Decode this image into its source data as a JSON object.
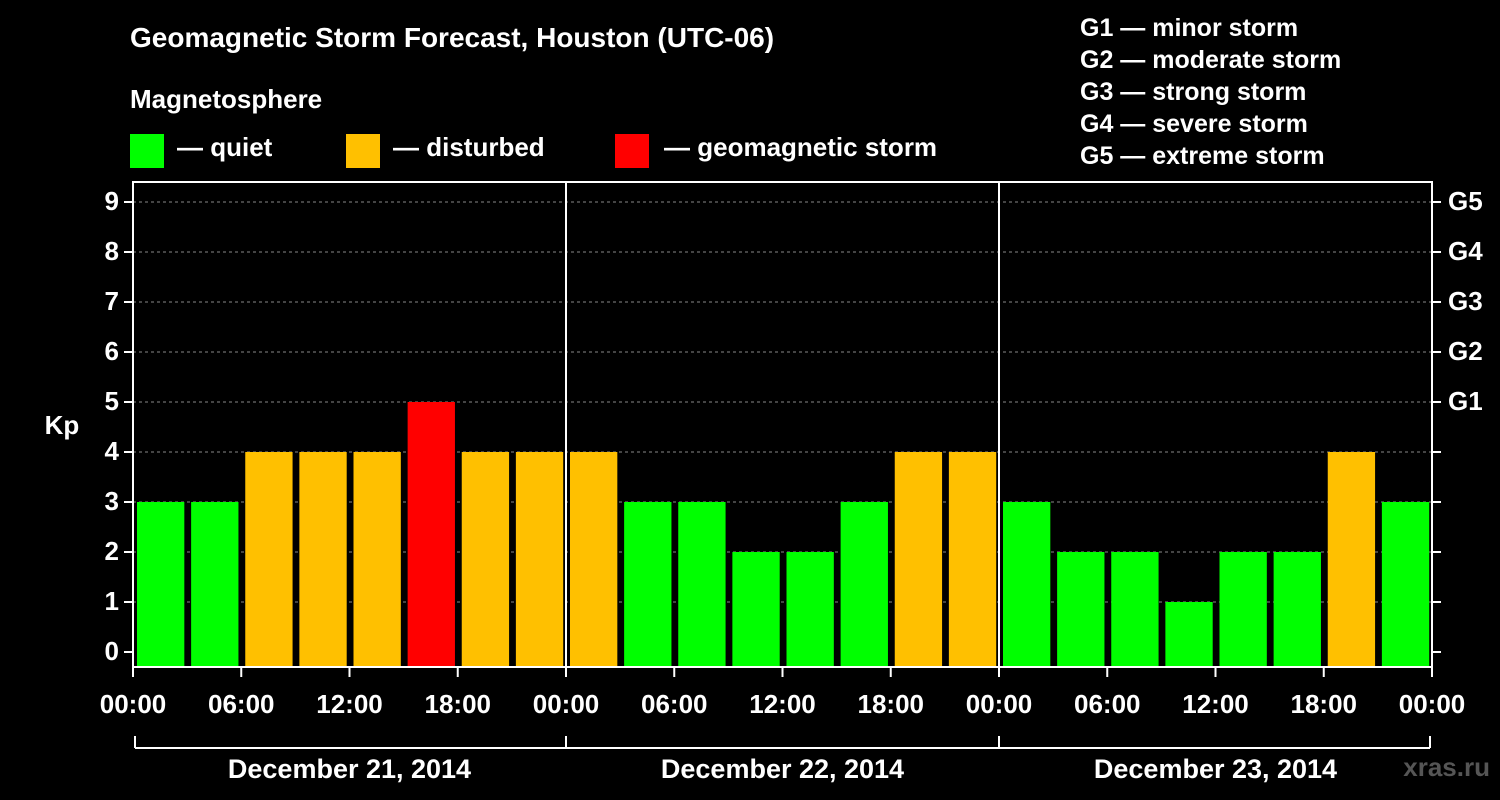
{
  "title": "Geomagnetic Storm Forecast, Houston (UTC-06)",
  "magnetosphere_label": "Magnetosphere",
  "legend": [
    {
      "label": "— quiet",
      "color": "#00ff00"
    },
    {
      "label": "— disturbed",
      "color": "#ffc000"
    },
    {
      "label": "— geomagnetic storm",
      "color": "#ff0000"
    }
  ],
  "storm_scale": [
    "G1 — minor storm",
    "G2 — moderate storm",
    "G3 — strong storm",
    "G4 — severe storm",
    "G5 — extreme storm"
  ],
  "watermark": "xras.ru",
  "colors": {
    "quiet": "#00ff00",
    "disturbed": "#ffc000",
    "storm": "#ff0000",
    "grid": "#888888"
  },
  "chart_data": {
    "type": "bar",
    "ylabel": "Kp",
    "ylim": [
      0,
      9
    ],
    "yticks": [
      0,
      1,
      2,
      3,
      4,
      5,
      6,
      7,
      8,
      9
    ],
    "right_axis_labels": [
      {
        "kp": 5,
        "label": "G1"
      },
      {
        "kp": 6,
        "label": "G2"
      },
      {
        "kp": 7,
        "label": "G3"
      },
      {
        "kp": 8,
        "label": "G4"
      },
      {
        "kp": 9,
        "label": "G5"
      }
    ],
    "grid": "dashed horizontal",
    "x_tick_labels": [
      "00:00",
      "06:00",
      "12:00",
      "18:00",
      "00:00",
      "06:00",
      "12:00",
      "18:00",
      "00:00",
      "06:00",
      "12:00",
      "18:00",
      "00:00"
    ],
    "days": [
      "December 21, 2014",
      "December 22, 2014",
      "December 23, 2014"
    ],
    "bar_interval_hours": 3,
    "values": [
      3,
      3,
      4,
      4,
      4,
      5,
      4,
      4,
      4,
      3,
      3,
      2,
      2,
      3,
      4,
      4,
      3,
      2,
      2,
      1,
      2,
      2,
      4,
      3
    ],
    "categories": [
      "quiet",
      "quiet",
      "disturbed",
      "disturbed",
      "disturbed",
      "storm",
      "disturbed",
      "disturbed",
      "disturbed",
      "quiet",
      "quiet",
      "quiet",
      "quiet",
      "quiet",
      "disturbed",
      "disturbed",
      "quiet",
      "quiet",
      "quiet",
      "quiet",
      "quiet",
      "quiet",
      "disturbed",
      "quiet"
    ]
  }
}
